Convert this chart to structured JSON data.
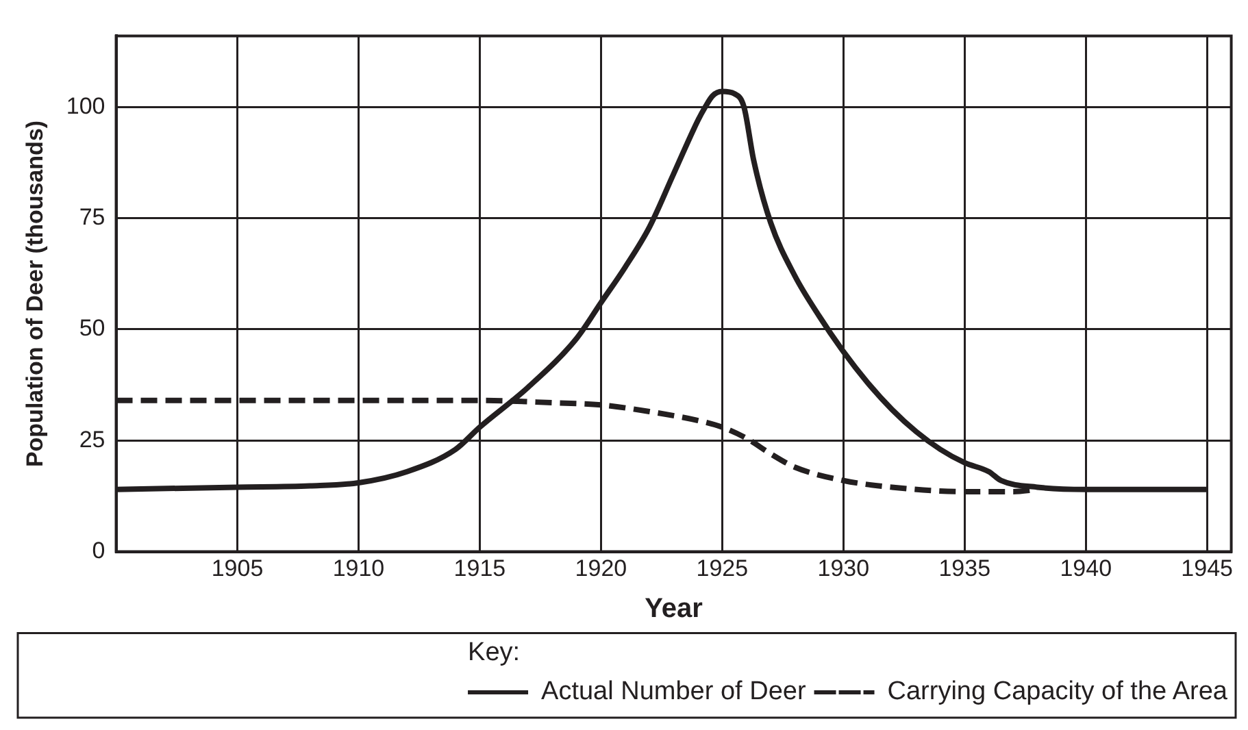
{
  "chart_data": {
    "type": "line",
    "xlabel": "Year",
    "ylabel": "Population of Deer (thousands)",
    "legend_title": "Key:",
    "legend": "bottom right",
    "grid": true,
    "marker": "none",
    "xlim": [
      1900,
      1946
    ],
    "xticks": [
      1905,
      1910,
      1915,
      1920,
      1925,
      1930,
      1935,
      1940,
      1945
    ],
    "ylim": [
      0,
      116
    ],
    "yticks": [
      0,
      25,
      50,
      75,
      100
    ],
    "series": [
      {
        "name": "Actual Number of Deer",
        "color": "#231f20",
        "line_style": "solid",
        "x": [
          1900,
          1905,
          1908,
          1910,
          1912,
          1914,
          1915,
          1917,
          1919,
          1920,
          1921,
          1922,
          1923,
          1924,
          1924.3,
          1924.6,
          1925,
          1925.5,
          1925.9,
          1926.3,
          1927,
          1928,
          1929,
          1930,
          1931,
          1932,
          1933,
          1934,
          1935,
          1936,
          1936.5,
          1938,
          1940,
          1945
        ],
        "values": [
          14,
          14.5,
          14.8,
          15.5,
          18,
          23,
          28,
          37,
          48,
          56,
          64,
          73,
          85,
          97,
          100,
          102.5,
          103.5,
          103,
          100,
          88,
          74,
          62,
          53,
          45,
          38,
          32,
          27,
          23,
          20,
          18,
          16,
          14.5,
          14,
          14
        ]
      },
      {
        "name": "Carrying Capacity of the Area",
        "color": "#231f20",
        "line_style": "dashed",
        "x": [
          1900,
          1915,
          1918,
          1920,
          1922,
          1924,
          1925,
          1926,
          1927,
          1928,
          1930,
          1932,
          1935,
          1937,
          1938
        ],
        "values": [
          34,
          34,
          33.5,
          33,
          31.5,
          29.5,
          28,
          25.5,
          22,
          19,
          16,
          14.5,
          13.5,
          13.5,
          14
        ]
      }
    ]
  }
}
